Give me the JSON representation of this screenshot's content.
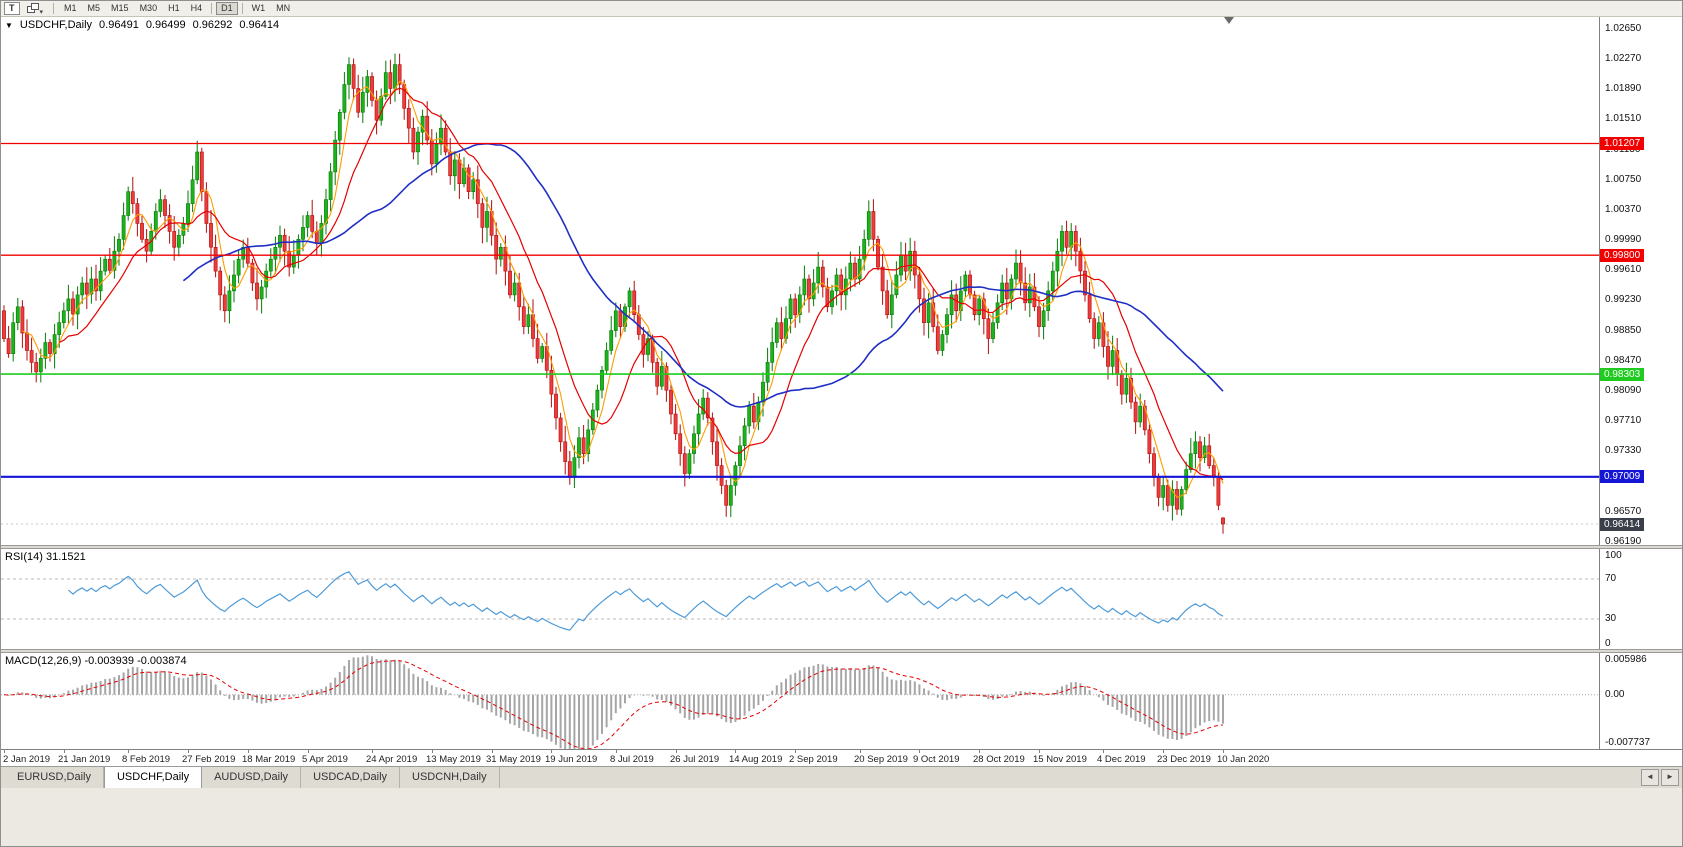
{
  "toolbar": {
    "tool_button": "T",
    "dropdown_glyph": "▾",
    "timeframes": [
      "M1",
      "M5",
      "M15",
      "M30",
      "H1",
      "H4",
      "D1",
      "W1",
      "MN"
    ],
    "active_timeframe": "D1"
  },
  "header": {
    "dropdown_glyph": "▼",
    "symbol": "USDCHF,Daily",
    "open": "0.96491",
    "high": "0.96499",
    "low": "0.96292",
    "close": "0.96414"
  },
  "panels": {
    "rsi_label": "RSI(14) 31.1521",
    "macd_label": "MACD(12,26,9) -0.003939 -0.003874"
  },
  "tabs": {
    "items": [
      "EURUSD,Daily",
      "USDCHF,Daily",
      "AUDUSD,Daily",
      "USDCAD,Daily",
      "USDCNH,Daily"
    ],
    "active": "USDCHF,Daily",
    "scroll_left_glyph": "◄",
    "scroll_right_glyph": "►"
  },
  "colors": {
    "bull_fill": "#1db31d",
    "bull_stroke": "#067a06",
    "bear_fill": "#ee3b3b",
    "bear_stroke": "#b00d0d",
    "current_tag_bg": "#3a3f4a",
    "background": "#ffffff"
  },
  "chart_data": {
    "type": "candlestick",
    "symbol": "USDCHF",
    "timeframe": "Daily",
    "title": "USDCHF,Daily",
    "y_range": [
      0.9615,
      1.028
    ],
    "price_ticks": [
      "1.02650",
      "1.02270",
      "1.01890",
      "1.01510",
      "1.01130",
      "1.00750",
      "1.00370",
      "0.99990",
      "0.99610",
      "0.99230",
      "0.98850",
      "0.98470",
      "0.98090",
      "0.97710",
      "0.97330",
      "0.96950",
      "0.96570",
      "0.96190"
    ],
    "x_labels": [
      "2 Jan 2019",
      "21 Jan 2019",
      "8 Feb 2019",
      "27 Feb 2019",
      "18 Mar 2019",
      "5 Apr 2019",
      "24 Apr 2019",
      "13 May 2019",
      "31 May 2019",
      "19 Jun 2019",
      "8 Jul 2019",
      "26 Jul 2019",
      "14 Aug 2019",
      "2 Sep 2019",
      "20 Sep 2019",
      "9 Oct 2019",
      "28 Oct 2019",
      "15 Nov 2019",
      "4 Dec 2019",
      "23 Dec 2019",
      "10 Jan 2020"
    ],
    "closes": [
      0.9875,
      0.9856,
      0.9895,
      0.9915,
      0.9882,
      0.986,
      0.9845,
      0.9833,
      0.985,
      0.987,
      0.9856,
      0.988,
      0.9895,
      0.991,
      0.9925,
      0.9906,
      0.993,
      0.9945,
      0.9931,
      0.995,
      0.9935,
      0.996,
      0.9975,
      0.9961,
      0.9985,
      1.0,
      1.003,
      1.006,
      1.0045,
      1.002,
      1.0,
      0.9985,
      1.001,
      1.0035,
      1.005,
      1.003,
      1.001,
      0.999,
      1.0005,
      1.002,
      1.0045,
      1.0075,
      1.011,
      1.006,
      1.002,
      0.999,
      0.996,
      0.993,
      0.991,
      0.9935,
      0.9955,
      0.9975,
      0.999,
      0.997,
      0.9945,
      0.9925,
      0.994,
      0.996,
      0.9975,
      0.999,
      1.0005,
      0.9985,
      0.9965,
      0.998,
      1.0,
      1.0015,
      1.003,
      1.001,
      0.9995,
      1.002,
      1.005,
      1.0085,
      1.0125,
      1.016,
      1.0195,
      1.022,
      1.019,
      1.016,
      1.0185,
      1.0205,
      1.0175,
      1.015,
      1.018,
      1.021,
      1.019,
      1.022,
      1.0195,
      1.0165,
      1.014,
      1.011,
      1.0135,
      1.0155,
      1.0125,
      1.0095,
      1.012,
      1.014,
      1.011,
      1.008,
      1.01,
      1.007,
      1.009,
      1.006,
      1.0075,
      1.0045,
      1.0015,
      1.0035,
      1.0005,
      0.9975,
      0.999,
      0.996,
      0.993,
      0.9945,
      0.9915,
      0.989,
      0.9905,
      0.9875,
      0.985,
      0.9865,
      0.9835,
      0.9805,
      0.9775,
      0.9745,
      0.972,
      0.97,
      0.9725,
      0.975,
      0.973,
      0.976,
      0.9785,
      0.981,
      0.9835,
      0.986,
      0.9885,
      0.991,
      0.989,
      0.9915,
      0.9935,
      0.9905,
      0.988,
      0.9855,
      0.9875,
      0.9845,
      0.9815,
      0.984,
      0.981,
      0.978,
      0.9755,
      0.973,
      0.9705,
      0.973,
      0.9755,
      0.978,
      0.98,
      0.9775,
      0.9745,
      0.9715,
      0.969,
      0.9665,
      0.969,
      0.9715,
      0.974,
      0.9765,
      0.979,
      0.977,
      0.9795,
      0.982,
      0.9845,
      0.987,
      0.9895,
      0.9875,
      0.99,
      0.9925,
      0.9905,
      0.993,
      0.995,
      0.9925,
      0.9945,
      0.9965,
      0.994,
      0.9915,
      0.9935,
      0.9955,
      0.993,
      0.995,
      0.997,
      0.995,
      0.9975,
      1.0,
      1.0035,
      1.0,
      0.9965,
      0.9935,
      0.9905,
      0.993,
      0.9955,
      0.998,
      0.996,
      0.9985,
      0.9955,
      0.9925,
      0.9895,
      0.992,
      0.989,
      0.986,
      0.988,
      0.9905,
      0.993,
      0.991,
      0.9935,
      0.9955,
      0.993,
      0.9905,
      0.9925,
      0.99,
      0.9875,
      0.9895,
      0.992,
      0.9945,
      0.9925,
      0.995,
      0.997,
      0.9945,
      0.992,
      0.994,
      0.9915,
      0.989,
      0.991,
      0.9935,
      0.996,
      0.9985,
      1.001,
      0.999,
      1.001,
      0.9985,
      0.996,
      0.993,
      0.99,
      0.9875,
      0.9895,
      0.9865,
      0.984,
      0.986,
      0.983,
      0.9805,
      0.9825,
      0.9795,
      0.977,
      0.979,
      0.976,
      0.973,
      0.97,
      0.9675,
      0.969,
      0.9665,
      0.9685,
      0.966,
      0.9685,
      0.971,
      0.973,
      0.9745,
      0.9725,
      0.974,
      0.9715,
      0.97,
      0.9665,
      0.96414
    ],
    "last_candle": {
      "open": 0.96491,
      "high": 0.96499,
      "low": 0.96292,
      "close": 0.96414
    },
    "current_price": {
      "label": "0.96414",
      "value": 0.96414
    },
    "hlines": [
      {
        "label": "1.01207",
        "value": 1.01207,
        "color": "#f20000",
        "width": 1.3
      },
      {
        "label": "0.99800",
        "value": 0.998,
        "color": "#f20000",
        "width": 1.3
      },
      {
        "label": "0.98303",
        "value": 0.98303,
        "color": "#1ecb1e",
        "width": 1.6
      },
      {
        "label": "0.97009",
        "value": 0.97009,
        "color": "#1515d6",
        "width": 2.2
      }
    ],
    "moving_averages": [
      {
        "period": 5,
        "color": "#ff9c00",
        "width": 1.1
      },
      {
        "period": 13,
        "color": "#e60000",
        "width": 1.2
      },
      {
        "period": 40,
        "color": "#1f2fc4",
        "width": 1.6
      }
    ],
    "rsi": {
      "period": 14,
      "last_value": "31.1521",
      "range": [
        0,
        100
      ],
      "levels": [
        70,
        30
      ],
      "axis_labels": [
        {
          "text": "100",
          "value": 100
        },
        {
          "text": "70",
          "value": 70
        },
        {
          "text": "30",
          "value": 30
        },
        {
          "text": "0",
          "value": 0
        }
      ],
      "color": "#4f9bd8"
    },
    "macd": {
      "fast": 12,
      "slow": 26,
      "signal": 9,
      "values": "-0.003939 -0.003874",
      "range": [
        -0.0078,
        0.006
      ],
      "axis_top": "0.005986",
      "axis_zero": "0.00",
      "axis_bottom": "-0.007737",
      "histogram_color": "#a6a6a6",
      "signal_color": "#e60000"
    }
  }
}
